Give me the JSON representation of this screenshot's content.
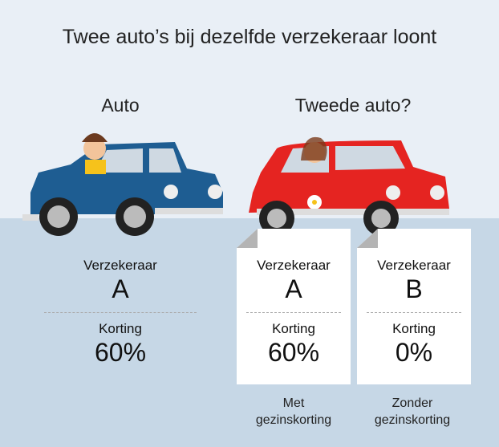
{
  "title": "Twee auto’s bij dezelfde verzekeraar loont",
  "left": {
    "heading": "Auto",
    "insurer_label": "Verzekeraar",
    "insurer": "A",
    "discount_label": "Korting",
    "discount": "60%"
  },
  "right": {
    "heading": "Tweede auto?",
    "cards": [
      {
        "insurer_label": "Verzekeraar",
        "insurer": "A",
        "discount_label": "Korting",
        "discount": "60%",
        "caption_1": "Met",
        "caption_2": "gezinskorting"
      },
      {
        "insurer_label": "Verzekeraar",
        "insurer": "B",
        "discount_label": "Korting",
        "discount": "0%",
        "caption_1": "Zonder",
        "caption_2": "gezinskorting"
      }
    ]
  },
  "colors": {
    "top_bg": "#e9eff6",
    "bottom_bg": "#c6d7e6",
    "blue_car": "#1e5d92",
    "red_car": "#e52421"
  }
}
